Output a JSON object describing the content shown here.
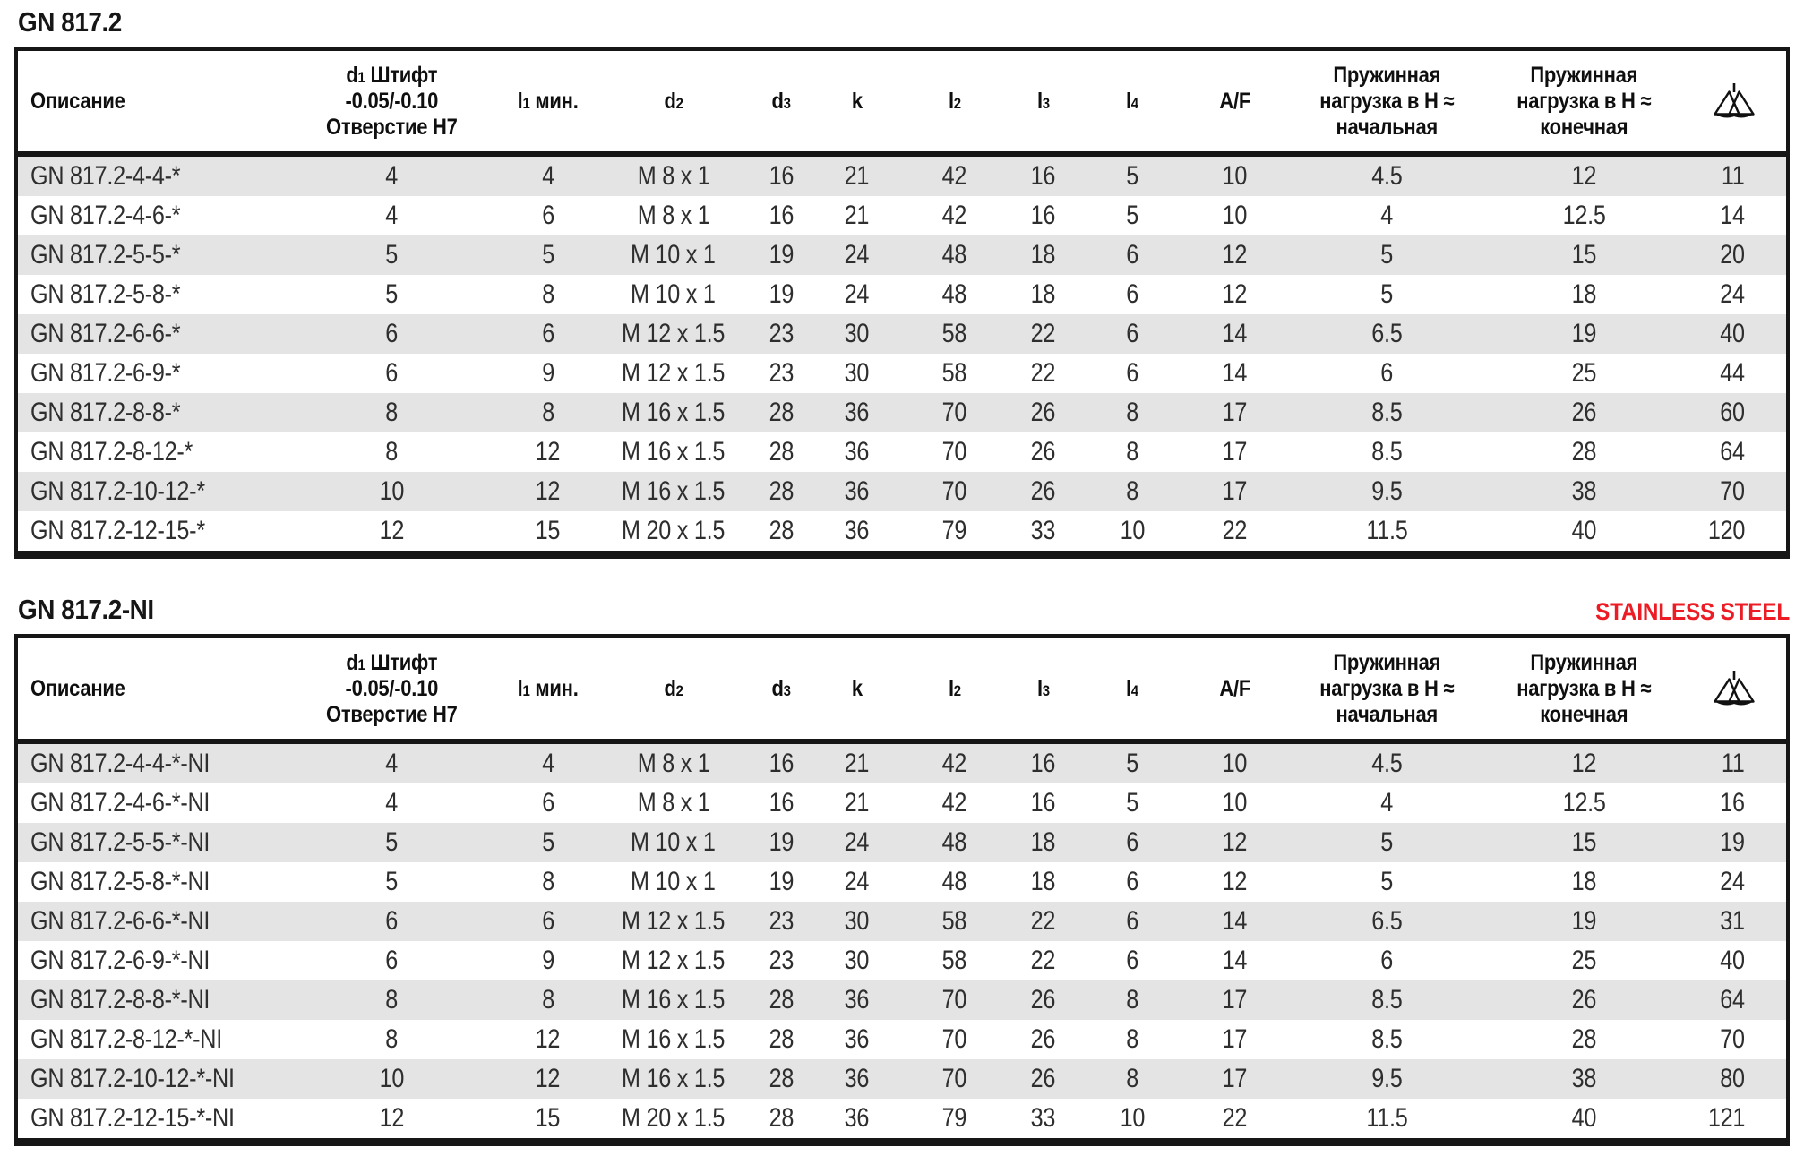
{
  "colors": {
    "accent_red": "#ed1c24",
    "row_alt": "#e4e4e4",
    "line": "#161616"
  },
  "tables": [
    {
      "title": "GN 817.2",
      "columns": [
        {
          "id": "description",
          "align": "left",
          "lines": [
            [
              {
                "t": "Описание"
              }
            ]
          ]
        },
        {
          "id": "d1",
          "align": "center",
          "lines": [
            [
              {
                "t": "d"
              },
              {
                "t": "1",
                "sub": true
              },
              {
                "t": " Штифт"
              }
            ],
            [
              {
                "t": "-0.05/-0.10"
              }
            ],
            [
              {
                "t": "Отверстие H7"
              }
            ]
          ]
        },
        {
          "id": "l1-min",
          "align": "center",
          "lines": [
            [
              {
                "t": "l"
              },
              {
                "t": "1",
                "sub": true
              },
              {
                "t": " мин."
              }
            ]
          ]
        },
        {
          "id": "d2",
          "align": "center",
          "lines": [
            [
              {
                "t": "d"
              },
              {
                "t": "2",
                "sub": true
              }
            ]
          ]
        },
        {
          "id": "d3",
          "align": "center",
          "lines": [
            [
              {
                "t": "d"
              },
              {
                "t": "3",
                "sub": true
              }
            ]
          ]
        },
        {
          "id": "k",
          "align": "center",
          "lines": [
            [
              {
                "t": "k"
              }
            ]
          ]
        },
        {
          "id": "l2",
          "align": "center",
          "lines": [
            [
              {
                "t": "l"
              },
              {
                "t": "2",
                "sub": true
              }
            ]
          ]
        },
        {
          "id": "l3",
          "align": "center",
          "lines": [
            [
              {
                "t": "l"
              },
              {
                "t": "3",
                "sub": true
              }
            ]
          ]
        },
        {
          "id": "l4",
          "align": "center",
          "lines": [
            [
              {
                "t": "l"
              },
              {
                "t": "4",
                "sub": true
              }
            ]
          ]
        },
        {
          "id": "af",
          "align": "center",
          "lines": [
            [
              {
                "t": "A/F"
              }
            ]
          ]
        },
        {
          "id": "spring-initial",
          "align": "center",
          "lines": [
            [
              {
                "t": "Пружинная"
              }
            ],
            [
              {
                "t": "нагрузка в Н ≈"
              }
            ],
            [
              {
                "t": "начальная"
              }
            ]
          ]
        },
        {
          "id": "spring-final",
          "align": "center",
          "lines": [
            [
              {
                "t": "Пружинная"
              }
            ],
            [
              {
                "t": "нагрузка в Н ≈"
              }
            ],
            [
              {
                "t": "конечная"
              }
            ]
          ]
        },
        {
          "id": "weight",
          "align": "right",
          "icon": "scale-icon",
          "lines": []
        }
      ],
      "rows": [
        [
          "GN 817.2-4-4-*",
          "4",
          "4",
          "M 8 x 1",
          "16",
          "21",
          "42",
          "16",
          "5",
          "10",
          "4.5",
          "12",
          "11"
        ],
        [
          "GN 817.2-4-6-*",
          "4",
          "6",
          "M 8 x 1",
          "16",
          "21",
          "42",
          "16",
          "5",
          "10",
          "4",
          "12.5",
          "14"
        ],
        [
          "GN 817.2-5-5-*",
          "5",
          "5",
          "M 10 x 1",
          "19",
          "24",
          "48",
          "18",
          "6",
          "12",
          "5",
          "15",
          "20"
        ],
        [
          "GN 817.2-5-8-*",
          "5",
          "8",
          "M 10 x 1",
          "19",
          "24",
          "48",
          "18",
          "6",
          "12",
          "5",
          "18",
          "24"
        ],
        [
          "GN 817.2-6-6-*",
          "6",
          "6",
          "M 12 x 1.5",
          "23",
          "30",
          "58",
          "22",
          "6",
          "14",
          "6.5",
          "19",
          "40"
        ],
        [
          "GN 817.2-6-9-*",
          "6",
          "9",
          "M 12 x 1.5",
          "23",
          "30",
          "58",
          "22",
          "6",
          "14",
          "6",
          "25",
          "44"
        ],
        [
          "GN 817.2-8-8-*",
          "8",
          "8",
          "M 16 x 1.5",
          "28",
          "36",
          "70",
          "26",
          "8",
          "17",
          "8.5",
          "26",
          "60"
        ],
        [
          "GN 817.2-8-12-*",
          "8",
          "12",
          "M 16 x 1.5",
          "28",
          "36",
          "70",
          "26",
          "8",
          "17",
          "8.5",
          "28",
          "64"
        ],
        [
          "GN 817.2-10-12-*",
          "10",
          "12",
          "M 16 x 1.5",
          "28",
          "36",
          "70",
          "26",
          "8",
          "17",
          "9.5",
          "38",
          "70"
        ],
        [
          "GN 817.2-12-15-*",
          "12",
          "15",
          "M 20 x 1.5",
          "28",
          "36",
          "79",
          "33",
          "10",
          "22",
          "11.5",
          "40",
          "120"
        ]
      ]
    },
    {
      "title": "GN 817.2-NI",
      "badge": "STAINLESS STEEL",
      "columns": [
        {
          "id": "description",
          "align": "left",
          "lines": [
            [
              {
                "t": "Описание"
              }
            ]
          ]
        },
        {
          "id": "d1",
          "align": "center",
          "lines": [
            [
              {
                "t": "d"
              },
              {
                "t": "1",
                "sub": true
              },
              {
                "t": " Штифт"
              }
            ],
            [
              {
                "t": "-0.05/-0.10"
              }
            ],
            [
              {
                "t": "Отверстие H7"
              }
            ]
          ]
        },
        {
          "id": "l1-min",
          "align": "center",
          "lines": [
            [
              {
                "t": "l"
              },
              {
                "t": "1",
                "sub": true
              },
              {
                "t": " мин."
              }
            ]
          ]
        },
        {
          "id": "d2",
          "align": "center",
          "lines": [
            [
              {
                "t": "d"
              },
              {
                "t": "2",
                "sub": true
              }
            ]
          ]
        },
        {
          "id": "d3",
          "align": "center",
          "lines": [
            [
              {
                "t": "d"
              },
              {
                "t": "3",
                "sub": true
              }
            ]
          ]
        },
        {
          "id": "k",
          "align": "center",
          "lines": [
            [
              {
                "t": "k"
              }
            ]
          ]
        },
        {
          "id": "l2",
          "align": "center",
          "lines": [
            [
              {
                "t": "l"
              },
              {
                "t": "2",
                "sub": true
              }
            ]
          ]
        },
        {
          "id": "l3",
          "align": "center",
          "lines": [
            [
              {
                "t": "l"
              },
              {
                "t": "3",
                "sub": true
              }
            ]
          ]
        },
        {
          "id": "l4",
          "align": "center",
          "lines": [
            [
              {
                "t": "l"
              },
              {
                "t": "4",
                "sub": true
              }
            ]
          ]
        },
        {
          "id": "af",
          "align": "center",
          "lines": [
            [
              {
                "t": "A/F"
              }
            ]
          ]
        },
        {
          "id": "spring-initial",
          "align": "center",
          "lines": [
            [
              {
                "t": "Пружинная"
              }
            ],
            [
              {
                "t": "нагрузка в Н ≈"
              }
            ],
            [
              {
                "t": "начальная"
              }
            ]
          ]
        },
        {
          "id": "spring-final",
          "align": "center",
          "lines": [
            [
              {
                "t": "Пружинная"
              }
            ],
            [
              {
                "t": "нагрузка в Н ≈"
              }
            ],
            [
              {
                "t": "конечная"
              }
            ]
          ]
        },
        {
          "id": "weight",
          "align": "right",
          "icon": "scale-icon",
          "lines": []
        }
      ],
      "rows": [
        [
          "GN 817.2-4-4-*-NI",
          "4",
          "4",
          "M 8 x 1",
          "16",
          "21",
          "42",
          "16",
          "5",
          "10",
          "4.5",
          "12",
          "11"
        ],
        [
          "GN 817.2-4-6-*-NI",
          "4",
          "6",
          "M 8 x 1",
          "16",
          "21",
          "42",
          "16",
          "5",
          "10",
          "4",
          "12.5",
          "16"
        ],
        [
          "GN 817.2-5-5-*-NI",
          "5",
          "5",
          "M 10 x 1",
          "19",
          "24",
          "48",
          "18",
          "6",
          "12",
          "5",
          "15",
          "19"
        ],
        [
          "GN 817.2-5-8-*-NI",
          "5",
          "8",
          "M 10 x 1",
          "19",
          "24",
          "48",
          "18",
          "6",
          "12",
          "5",
          "18",
          "24"
        ],
        [
          "GN 817.2-6-6-*-NI",
          "6",
          "6",
          "M 12 x 1.5",
          "23",
          "30",
          "58",
          "22",
          "6",
          "14",
          "6.5",
          "19",
          "31"
        ],
        [
          "GN 817.2-6-9-*-NI",
          "6",
          "9",
          "M 12 x 1.5",
          "23",
          "30",
          "58",
          "22",
          "6",
          "14",
          "6",
          "25",
          "40"
        ],
        [
          "GN 817.2-8-8-*-NI",
          "8",
          "8",
          "M 16 x 1.5",
          "28",
          "36",
          "70",
          "26",
          "8",
          "17",
          "8.5",
          "26",
          "64"
        ],
        [
          "GN 817.2-8-12-*-NI",
          "8",
          "12",
          "M 16 x 1.5",
          "28",
          "36",
          "70",
          "26",
          "8",
          "17",
          "8.5",
          "28",
          "70"
        ],
        [
          "GN 817.2-10-12-*-NI",
          "10",
          "12",
          "M 16 x 1.5",
          "28",
          "36",
          "70",
          "26",
          "8",
          "17",
          "9.5",
          "38",
          "80"
        ],
        [
          "GN 817.2-12-15-*-NI",
          "12",
          "15",
          "M 20 x 1.5",
          "28",
          "36",
          "79",
          "33",
          "10",
          "22",
          "11.5",
          "40",
          "121"
        ]
      ]
    }
  ]
}
